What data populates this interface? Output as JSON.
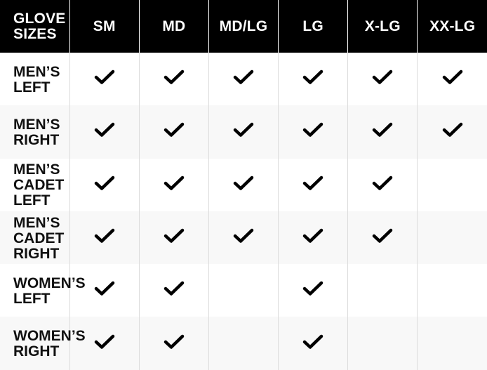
{
  "header": {
    "title_line1": "GLOVE",
    "title_line2": "SIZES",
    "sizes": [
      "SM",
      "MD",
      "MD/LG",
      "LG",
      "X-LG",
      "XX-LG"
    ]
  },
  "icon": "checkmark-icon",
  "rows": [
    {
      "line1": "MEN’S",
      "line2": "LEFT",
      "available": [
        true,
        true,
        true,
        true,
        true,
        true
      ]
    },
    {
      "line1": "MEN’S",
      "line2": "RIGHT",
      "available": [
        true,
        true,
        true,
        true,
        true,
        true
      ]
    },
    {
      "line1": "MEN’S",
      "line2": "CADET LEFT",
      "available": [
        true,
        true,
        true,
        true,
        true,
        false
      ]
    },
    {
      "line1": "MEN’S",
      "line2": "CADET RIGHT",
      "available": [
        true,
        true,
        true,
        true,
        true,
        false
      ]
    },
    {
      "line1": "WOMEN’S",
      "line2": "LEFT",
      "available": [
        true,
        true,
        false,
        true,
        false,
        false
      ]
    },
    {
      "line1": "WOMEN’S",
      "line2": "RIGHT",
      "available": [
        true,
        true,
        false,
        true,
        false,
        false
      ]
    }
  ]
}
